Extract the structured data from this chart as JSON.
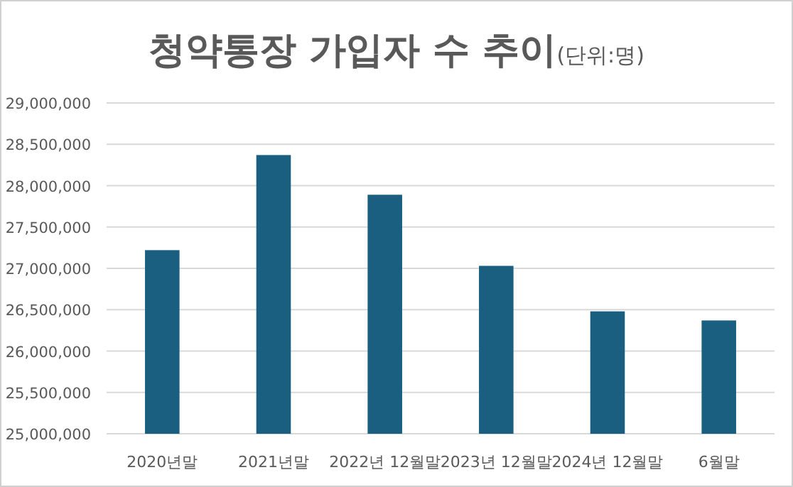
{
  "chart_data": {
    "type": "bar",
    "title": "청약통장 가입자 수 추이",
    "subtitle": "(단위:명)",
    "categories": [
      "2020년말",
      "2021년말",
      "2022년 12월말",
      "2023년 12월말",
      "2024년 12월말",
      "6월말"
    ],
    "values": [
      27220000,
      28370000,
      27890000,
      27030000,
      26480000,
      26370000
    ],
    "color": "#1a5f80",
    "ylim": [
      25000000,
      29000000
    ],
    "yticks": [
      {
        "value": 25000000,
        "label": "25,000,000"
      },
      {
        "value": 25500000,
        "label": "25,500,000"
      },
      {
        "value": 26000000,
        "label": "26,000,000"
      },
      {
        "value": 26500000,
        "label": "26,500,000"
      },
      {
        "value": 27000000,
        "label": "27,000,000"
      },
      {
        "value": 27500000,
        "label": "27,500,000"
      },
      {
        "value": 28000000,
        "label": "28,000,000"
      },
      {
        "value": 28500000,
        "label": "28,500,000"
      },
      {
        "value": 29000000,
        "label": "29,000,000"
      }
    ],
    "grid": "y"
  }
}
